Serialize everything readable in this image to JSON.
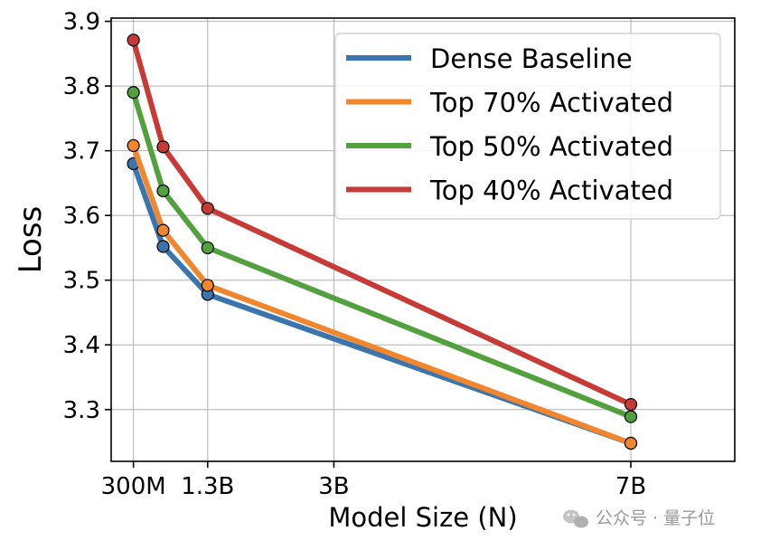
{
  "chart_data": {
    "type": "line",
    "xlabel": "Model Size (N)",
    "ylabel": "Loss",
    "x_tick_labels": [
      "300M",
      "1.3B",
      "3B",
      "7B"
    ],
    "x_ticks": [
      0.3,
      1.3,
      3,
      7
    ],
    "x_unit": "billion parameters",
    "xlim": [
      0.0,
      8.4
    ],
    "ylim": [
      3.22,
      3.905
    ],
    "y_ticks": [
      3.3,
      3.4,
      3.5,
      3.6,
      3.7,
      3.8,
      3.9
    ],
    "y_tick_labels": [
      "3.3",
      "3.4",
      "3.5",
      "3.6",
      "3.7",
      "3.8",
      "3.9"
    ],
    "grid": true,
    "legend_position": "top-right",
    "series": [
      {
        "name": "Dense Baseline",
        "color": "#3a75b0",
        "x": [
          0.3,
          0.7,
          1.3,
          7
        ],
        "values": [
          3.68,
          3.552,
          3.478,
          3.248
        ]
      },
      {
        "name": "Top 70% Activated",
        "color": "#f0862e",
        "x": [
          0.3,
          0.7,
          1.3,
          7
        ],
        "values": [
          3.708,
          3.577,
          3.492,
          3.248
        ]
      },
      {
        "name": "Top 50% Activated",
        "color": "#52a03e",
        "x": [
          0.3,
          0.7,
          1.3,
          7
        ],
        "values": [
          3.79,
          3.638,
          3.55,
          3.289
        ]
      },
      {
        "name": "Top 40% Activated",
        "color": "#c83a35",
        "x": [
          0.3,
          0.7,
          1.3,
          7
        ],
        "values": [
          3.871,
          3.706,
          3.611,
          3.308
        ]
      }
    ]
  },
  "watermark": {
    "text": "公众号 · 量子位",
    "icon": "wechat-icon"
  }
}
